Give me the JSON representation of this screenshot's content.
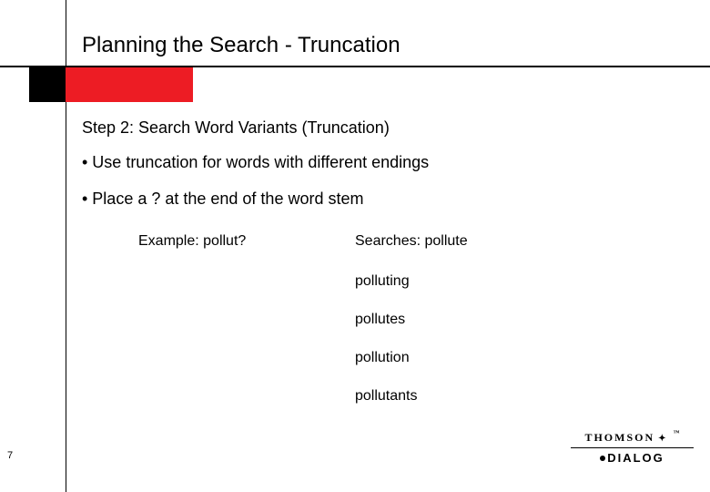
{
  "title": "Planning the Search - Truncation",
  "subtitle": "Step 2:  Search Word Variants  (Truncation)",
  "bullets": [
    "•  Use truncation for words with different endings",
    "•  Place a ? at the end of the word stem"
  ],
  "example_label": "Example:  pollut?",
  "searches_label": "Searches:  pollute",
  "search_results": [
    "polluting",
    "pollutes",
    "pollution",
    "pollutants"
  ],
  "page_number": "7",
  "logo": {
    "top": "THOMSON",
    "bottom": "DIALOG"
  },
  "colors": {
    "red_box": "#ed1c24",
    "black": "#000000",
    "background": "#ffffff"
  }
}
